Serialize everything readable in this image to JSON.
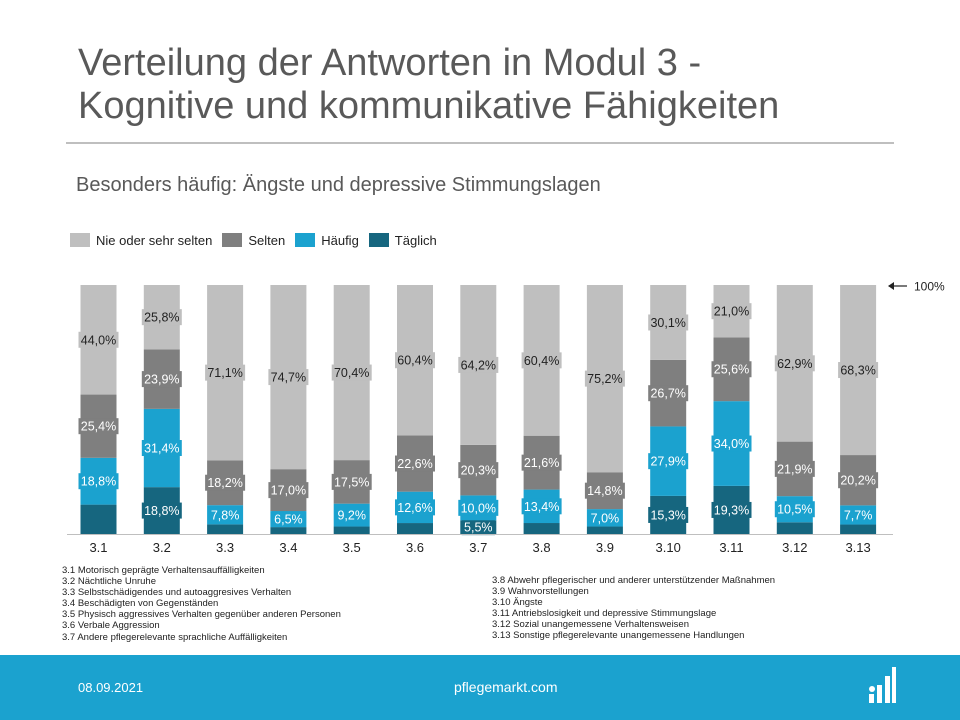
{
  "header": {
    "title_line1": "Verteilung der Antworten in Modul 3 -",
    "title_line2": "Kognitive und kommunikative Fähigkeiten",
    "subtitle": "Besonders häufig: Ängste und depressive Stimmungslagen"
  },
  "chart_data": {
    "type": "bar",
    "stacked": true,
    "percent_stacked": true,
    "categories": [
      "3.1",
      "3.2",
      "3.3",
      "3.4",
      "3.5",
      "3.6",
      "3.7",
      "3.8",
      "3.9",
      "3.10",
      "3.11",
      "3.12",
      "3.13"
    ],
    "series": [
      {
        "name": "Täglich",
        "color": "#16667f",
        "values": [
          11.8,
          18.8,
          3.9,
          2.8,
          3.0,
          4.4,
          5.5,
          4.4,
          3.0,
          15.3,
          19.3,
          4.7,
          3.8
        ],
        "labels": [
          "",
          "18,8%",
          "",
          "",
          "",
          "",
          "5,5%",
          "",
          "",
          "15,3%",
          "19,3%",
          "",
          ""
        ]
      },
      {
        "name": "Häufig",
        "color": "#1ba2cf",
        "values": [
          18.8,
          31.4,
          7.8,
          6.5,
          9.2,
          12.6,
          10.0,
          13.4,
          7.0,
          27.9,
          34.0,
          10.5,
          7.7
        ],
        "labels": [
          "18,8%",
          "31,4%",
          "7,8%",
          "6,5%",
          "9,2%",
          "12,6%",
          "10,0%",
          "13,4%",
          "7,0%",
          "27,9%",
          "34,0%",
          "10,5%",
          "7,7%"
        ]
      },
      {
        "name": "Selten",
        "color": "#7f7f7f",
        "values": [
          25.4,
          23.9,
          18.2,
          17.0,
          17.5,
          22.6,
          20.3,
          21.6,
          14.8,
          26.7,
          25.6,
          21.9,
          20.2
        ],
        "labels": [
          "25,4%",
          "23,9%",
          "18,2%",
          "17,0%",
          "17,5%",
          "22,6%",
          "20,3%",
          "21,6%",
          "14,8%",
          "26,7%",
          "25,6%",
          "21,9%",
          "20,2%"
        ]
      },
      {
        "name": "Nie oder sehr selten",
        "color": "#bfbfbf",
        "values": [
          44.0,
          25.8,
          71.1,
          74.7,
          70.4,
          60.4,
          64.2,
          60.4,
          75.2,
          30.1,
          21.0,
          62.9,
          68.3
        ],
        "labels": [
          "44,0%",
          "25,8%",
          "71,1%",
          "74,7%",
          "70,4%",
          "60,4%",
          "64,2%",
          "60,4%",
          "75,2%",
          "30,1%",
          "21,0%",
          "62,9%",
          "68,3%"
        ]
      }
    ],
    "legend_order": [
      "Nie oder sehr selten",
      "Selten",
      "Häufig",
      "Täglich"
    ],
    "legend_position": "top-left",
    "ylim": [
      0,
      100
    ],
    "annotation": "100%",
    "grid": false
  },
  "descriptions_left": [
    "3.1 Motorisch geprägte Verhaltensauffälligkeiten",
    "3.2 Nächtliche Unruhe",
    "3.3 Selbstschädigendes und autoaggresives Verhalten",
    "3.4 Beschädigten von Gegenständen",
    "3.5 Physisch aggressives Verhalten gegenüber anderen Personen",
    "3.6 Verbale Aggression",
    "3.7 Andere pflegerelevante sprachliche Auffälligkeiten"
  ],
  "descriptions_right": [
    "3.8 Abwehr pflegerischer und anderer unterstützender Maßnahmen",
    "3.9 Wahnvorstellungen",
    "3.10 Ängste",
    "3.11 Antriebslosigkeit und depressive Stimmungslage",
    "3.12 Sozial unangemessene Verhaltensweisen",
    "3.13 Sonstige pflegerelevante unangemessene Handlungen"
  ],
  "footer": {
    "date": "08.09.2021",
    "brand": "pflegemarkt.com",
    "logo_icon": "bar-chart-logo-icon"
  }
}
